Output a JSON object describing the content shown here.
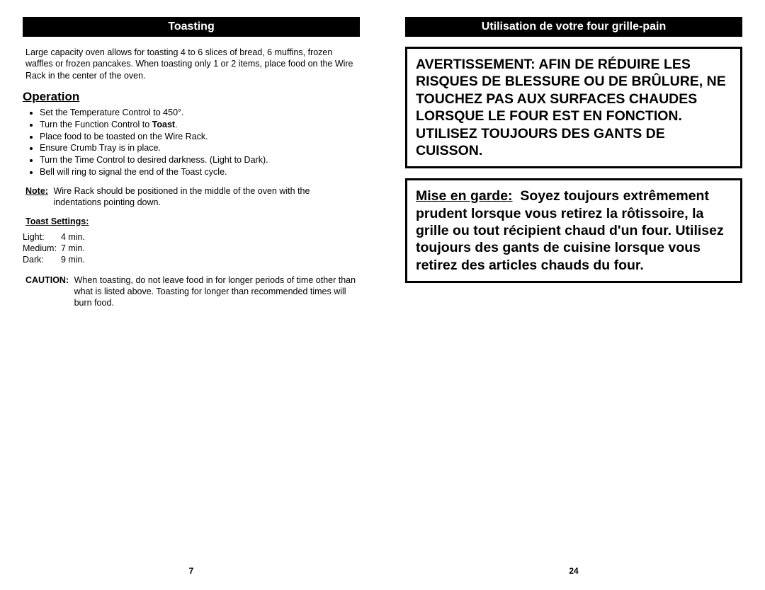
{
  "left": {
    "header": "Toasting",
    "intro": "Large capacity oven allows for toasting 4 to 6 slices of bread, 6 muffins, frozen waffles or frozen pancakes.  When toasting only 1 or 2 items, place food on the Wire Rack in the center of the oven.",
    "subheading": "Operation",
    "steps": [
      "Set the Temperature Control to 450°.",
      "Turn the Function Control to ",
      "Place food to be toasted on the Wire Rack.",
      "Ensure Crumb Tray is in place.",
      "Turn the Time Control to desired darkness. (Light  to Dark).",
      "Bell will ring to signal the end of the Toast cycle."
    ],
    "step1_bold": "Toast",
    "step1_suffix": ".",
    "note_label": "Note:",
    "note_body": "Wire Rack should be positioned in the middle of the oven with the indentations pointing down.",
    "settings_label": "Toast Settings:",
    "settings": [
      {
        "name": "Light:",
        "time": "4 min."
      },
      {
        "name": "Medium:",
        "time": "7 min."
      },
      {
        "name": "Dark:",
        "time": "9 min."
      }
    ],
    "caution_label": "CAUTION:",
    "caution_body": "When toasting, do not leave food in for longer periods of time other than what is listed above.  Toasting for longer than recommended times will burn food.",
    "page_num": "7"
  },
  "right": {
    "header": "Utilisation de votre four grille-pain",
    "warning": "AVERTISSEMENT: AFIN DE RÉDUIRE LES RISQUES DE BLESSURE OU DE BRÛLURE, NE TOUCHEZ PAS AUX SURFACES CHAUDES LORSQUE LE FOUR EST EN FONCTION. UTILISEZ TOUJOURS DES GANTS DE CUISSON.",
    "caution_lead": "Mise en garde:",
    "caution_body": "Soyez toujours extrêmement prudent lorsque vous retirez la rôtissoire, la grille ou tout récipient chaud d'un four. Utilisez toujours des gants de cuisine lorsque vous retirez des articles chauds du four.",
    "page_num": "24"
  }
}
